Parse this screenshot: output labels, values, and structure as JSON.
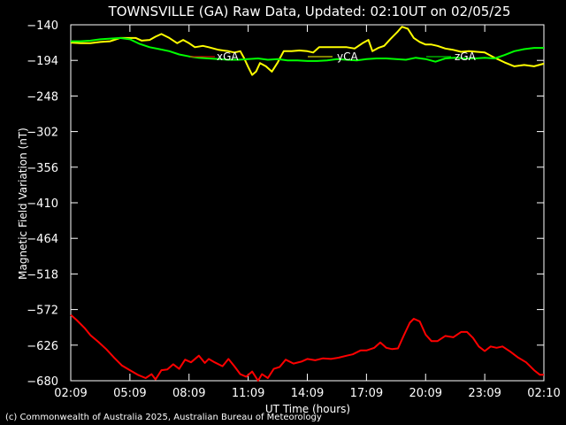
{
  "chart_data": {
    "type": "line",
    "title": "TOWNSVILLE (GA) Raw Data, Updated: 02:10UT on 02/05/25",
    "xlabel": "UT Time (hours)",
    "ylabel": "Magnetic Field Variation (nT)",
    "ylim": [
      -680,
      -140
    ],
    "xlim": [
      0,
      24
    ],
    "y_ticks": [
      -140,
      -194,
      -248,
      -302,
      -356,
      -410,
      -464,
      -518,
      -572,
      -626,
      -680
    ],
    "x_ticks": [
      {
        "x": 0,
        "label": "02:09"
      },
      {
        "x": 3,
        "label": "05:09"
      },
      {
        "x": 6,
        "label": "08:09"
      },
      {
        "x": 9,
        "label": "11:09"
      },
      {
        "x": 12,
        "label": "14:09"
      },
      {
        "x": 15,
        "label": "17:09"
      },
      {
        "x": 18,
        "label": "20:09"
      },
      {
        "x": 21,
        "label": "23:09"
      },
      {
        "x": 24,
        "label": "02:10"
      }
    ],
    "grid": false,
    "legend_position": "top-inside",
    "series": [
      {
        "name": "xGA",
        "color": "#ff0000",
        "points": [
          [
            0,
            -580
          ],
          [
            0.3,
            -588
          ],
          [
            0.7,
            -600
          ],
          [
            1.0,
            -611
          ],
          [
            1.4,
            -621
          ],
          [
            1.8,
            -632
          ],
          [
            2.2,
            -645
          ],
          [
            2.6,
            -657
          ],
          [
            3.0,
            -664
          ],
          [
            3.4,
            -671
          ],
          [
            3.8,
            -676
          ],
          [
            4.1,
            -670
          ],
          [
            4.3,
            -678
          ],
          [
            4.6,
            -664
          ],
          [
            4.9,
            -663
          ],
          [
            5.2,
            -655
          ],
          [
            5.5,
            -662
          ],
          [
            5.8,
            -648
          ],
          [
            6.1,
            -652
          ],
          [
            6.5,
            -642
          ],
          [
            6.8,
            -653
          ],
          [
            7.0,
            -647
          ],
          [
            7.3,
            -652
          ],
          [
            7.7,
            -658
          ],
          [
            8.0,
            -647
          ],
          [
            8.3,
            -658
          ],
          [
            8.6,
            -670
          ],
          [
            8.9,
            -674
          ],
          [
            9.2,
            -666
          ],
          [
            9.5,
            -680
          ],
          [
            9.7,
            -670
          ],
          [
            10.0,
            -676
          ],
          [
            10.3,
            -662
          ],
          [
            10.6,
            -659
          ],
          [
            10.9,
            -648
          ],
          [
            11.3,
            -654
          ],
          [
            11.7,
            -651
          ],
          [
            12.0,
            -647
          ],
          [
            12.4,
            -649
          ],
          [
            12.8,
            -646
          ],
          [
            13.2,
            -647
          ],
          [
            13.6,
            -645
          ],
          [
            14.0,
            -642
          ],
          [
            14.3,
            -640
          ],
          [
            14.7,
            -634
          ],
          [
            15.0,
            -634
          ],
          [
            15.4,
            -630
          ],
          [
            15.7,
            -622
          ],
          [
            16.0,
            -630
          ],
          [
            16.3,
            -632
          ],
          [
            16.6,
            -631
          ],
          [
            16.9,
            -611
          ],
          [
            17.2,
            -592
          ],
          [
            17.4,
            -586
          ],
          [
            17.7,
            -590
          ],
          [
            18.0,
            -610
          ],
          [
            18.3,
            -620
          ],
          [
            18.6,
            -620
          ],
          [
            19.0,
            -612
          ],
          [
            19.4,
            -614
          ],
          [
            19.8,
            -606
          ],
          [
            20.1,
            -606
          ],
          [
            20.4,
            -615
          ],
          [
            20.7,
            -628
          ],
          [
            21.0,
            -635
          ],
          [
            21.3,
            -628
          ],
          [
            21.6,
            -630
          ],
          [
            21.9,
            -628
          ],
          [
            22.3,
            -636
          ],
          [
            22.7,
            -645
          ],
          [
            23.1,
            -652
          ],
          [
            23.5,
            -664
          ],
          [
            23.8,
            -671
          ],
          [
            24.0,
            -671
          ]
        ]
      },
      {
        "name": "yCA",
        "color": "#ffff00",
        "points": [
          [
            0,
            -167
          ],
          [
            0.5,
            -168
          ],
          [
            1.0,
            -168
          ],
          [
            1.5,
            -166
          ],
          [
            2.0,
            -165
          ],
          [
            2.5,
            -160
          ],
          [
            3.0,
            -160
          ],
          [
            3.3,
            -160
          ],
          [
            3.6,
            -164
          ],
          [
            4.0,
            -163
          ],
          [
            4.3,
            -158
          ],
          [
            4.6,
            -154
          ],
          [
            5.0,
            -160
          ],
          [
            5.4,
            -168
          ],
          [
            5.7,
            -163
          ],
          [
            6.0,
            -168
          ],
          [
            6.3,
            -174
          ],
          [
            6.7,
            -172
          ],
          [
            7.0,
            -174
          ],
          [
            7.5,
            -178
          ],
          [
            8.0,
            -180
          ],
          [
            8.3,
            -182
          ],
          [
            8.6,
            -180
          ],
          [
            8.8,
            -191
          ],
          [
            9.0,
            -204
          ],
          [
            9.2,
            -216
          ],
          [
            9.4,
            -211
          ],
          [
            9.6,
            -198
          ],
          [
            9.9,
            -203
          ],
          [
            10.2,
            -211
          ],
          [
            10.5,
            -197
          ],
          [
            10.8,
            -180
          ],
          [
            11.2,
            -180
          ],
          [
            11.6,
            -179
          ],
          [
            12.0,
            -180
          ],
          [
            12.3,
            -182
          ],
          [
            12.6,
            -174
          ],
          [
            13.0,
            -174
          ],
          [
            13.5,
            -174
          ],
          [
            14.0,
            -174
          ],
          [
            14.4,
            -176
          ],
          [
            14.8,
            -168
          ],
          [
            15.1,
            -163
          ],
          [
            15.3,
            -180
          ],
          [
            15.6,
            -175
          ],
          [
            15.9,
            -172
          ],
          [
            16.2,
            -162
          ],
          [
            16.6,
            -150
          ],
          [
            16.8,
            -143
          ],
          [
            17.1,
            -146
          ],
          [
            17.4,
            -160
          ],
          [
            17.7,
            -166
          ],
          [
            18.0,
            -170
          ],
          [
            18.3,
            -170
          ],
          [
            18.6,
            -172
          ],
          [
            19.0,
            -176
          ],
          [
            19.4,
            -178
          ],
          [
            19.8,
            -181
          ],
          [
            20.2,
            -180
          ],
          [
            20.6,
            -181
          ],
          [
            21.0,
            -182
          ],
          [
            21.5,
            -190
          ],
          [
            22.0,
            -197
          ],
          [
            22.5,
            -203
          ],
          [
            23.0,
            -201
          ],
          [
            23.5,
            -203
          ],
          [
            24.0,
            -199
          ]
        ]
      },
      {
        "name": "zGA",
        "color": "#00ff00",
        "points": [
          [
            0,
            -165
          ],
          [
            0.5,
            -165
          ],
          [
            1.0,
            -164
          ],
          [
            1.5,
            -162
          ],
          [
            2.0,
            -161
          ],
          [
            2.5,
            -160
          ],
          [
            3.0,
            -162
          ],
          [
            3.5,
            -169
          ],
          [
            4.0,
            -174
          ],
          [
            4.5,
            -177
          ],
          [
            5.0,
            -180
          ],
          [
            5.5,
            -185
          ],
          [
            6.0,
            -188
          ],
          [
            6.5,
            -190
          ],
          [
            7.0,
            -191
          ],
          [
            7.5,
            -192
          ],
          [
            8.0,
            -193
          ],
          [
            8.5,
            -193
          ],
          [
            9.0,
            -192
          ],
          [
            9.5,
            -191
          ],
          [
            10.0,
            -193
          ],
          [
            10.5,
            -192
          ],
          [
            11.0,
            -194
          ],
          [
            11.5,
            -194
          ],
          [
            12.0,
            -195
          ],
          [
            12.5,
            -195
          ],
          [
            13.0,
            -194
          ],
          [
            13.5,
            -192
          ],
          [
            14.0,
            -193
          ],
          [
            14.5,
            -194
          ],
          [
            15.0,
            -192
          ],
          [
            15.5,
            -191
          ],
          [
            16.0,
            -191
          ],
          [
            16.5,
            -192
          ],
          [
            17.0,
            -193
          ],
          [
            17.5,
            -190
          ],
          [
            18.0,
            -192
          ],
          [
            18.5,
            -196
          ],
          [
            19.0,
            -191
          ],
          [
            19.5,
            -190
          ],
          [
            20.0,
            -191
          ],
          [
            20.5,
            -191
          ],
          [
            21.0,
            -190
          ],
          [
            21.5,
            -191
          ],
          [
            22.0,
            -186
          ],
          [
            22.5,
            -180
          ],
          [
            23.0,
            -177
          ],
          [
            23.5,
            -175
          ],
          [
            24.0,
            -175
          ]
        ]
      }
    ]
  },
  "footer": {
    "copyright": "(c) Commonwealth of Australia 2025, Australian Bureau of Meteorology"
  }
}
